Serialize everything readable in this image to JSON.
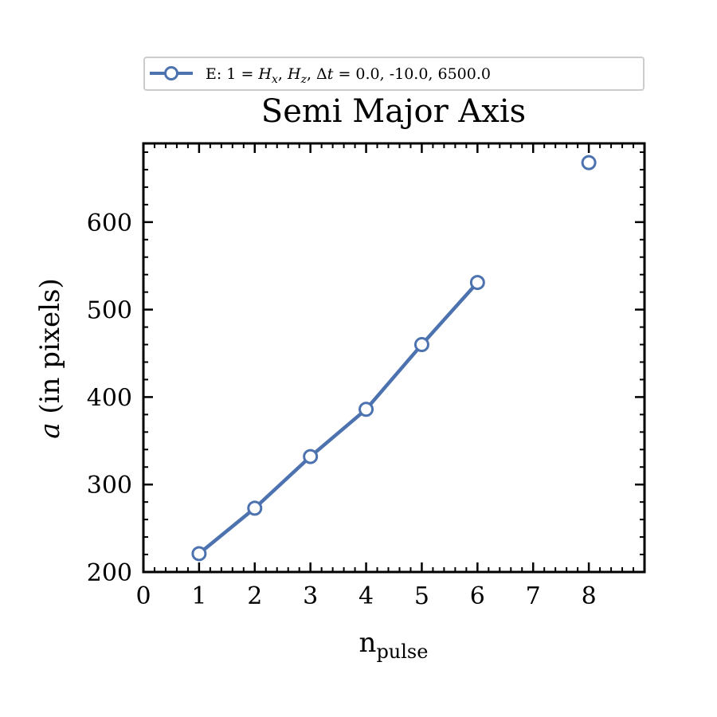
{
  "chart_data": {
    "type": "line",
    "title": "Semi Major Axis",
    "xlabel_main": "n",
    "xlabel_sub": "pulse",
    "ylabel": "a (in pixels)",
    "xlim": [
      0,
      9
    ],
    "ylim": [
      200,
      690
    ],
    "x_ticks": [
      0,
      1,
      2,
      3,
      4,
      5,
      6,
      7,
      8
    ],
    "y_ticks": [
      200,
      300,
      400,
      500,
      600
    ],
    "grid": false,
    "legend_position": "top-center, above title",
    "series": [
      {
        "name": "E: 1 = H_x, H_z, Δt = 0.0, -10.0, 6500.0",
        "color": "#4c72b0",
        "marker": "open-circle",
        "segments": [
          {
            "x": [
              1,
              2,
              3,
              4,
              5,
              6
            ],
            "y": [
              221,
              273,
              332,
              386,
              460,
              531
            ]
          },
          {
            "x": [
              8
            ],
            "y": [
              668
            ]
          }
        ]
      }
    ]
  },
  "legend": {
    "label": "E: 1 = H_x, H_z, Δt =  0.0, -10.0, 6500.0"
  }
}
